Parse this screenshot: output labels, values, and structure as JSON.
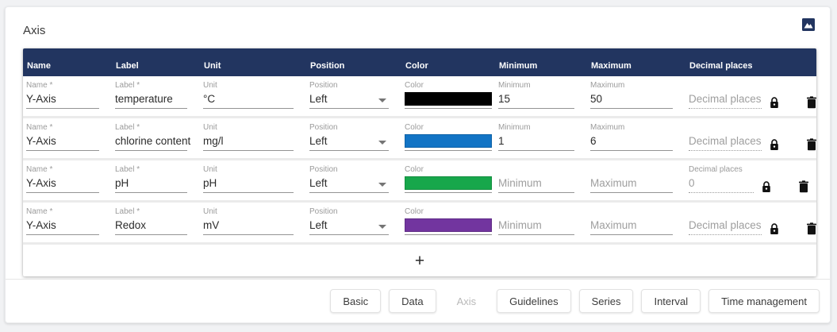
{
  "page": {
    "title": "Axis"
  },
  "theme": {
    "header_bg": "#223560",
    "divider": "#ebebeb"
  },
  "toolbar": {
    "export_image_icon": "image-icon"
  },
  "table": {
    "columns": [
      "Name",
      "Label",
      "Unit",
      "Position",
      "Color",
      "Minimum",
      "Maximum",
      "Decimal places"
    ],
    "rows": [
      {
        "fields": {
          "name": {
            "label": "Name *",
            "value": "Y-Axis",
            "state": "filled"
          },
          "label": {
            "label": "Label *",
            "value": "temperature",
            "state": "filled"
          },
          "unit": {
            "label": "Unit",
            "value": "°C",
            "state": "filled"
          },
          "position": {
            "label": "Position",
            "value": "Left",
            "state": "filled"
          },
          "color": {
            "label": "Color",
            "value": "#000000"
          },
          "minimum": {
            "label": "Minimum",
            "value": "15",
            "state": "filled"
          },
          "maximum": {
            "label": "Maximum",
            "value": "50",
            "state": "filled"
          },
          "decimal": {
            "label": "Decimal places",
            "value": "Decimal places",
            "state": "placeholder-disabled"
          }
        }
      },
      {
        "fields": {
          "name": {
            "label": "Name *",
            "value": "Y-Axis",
            "state": "filled"
          },
          "label": {
            "label": "Label *",
            "value": "chlorine content",
            "state": "filled"
          },
          "unit": {
            "label": "Unit",
            "value": "mg/l",
            "state": "filled"
          },
          "position": {
            "label": "Position",
            "value": "Left",
            "state": "filled"
          },
          "color": {
            "label": "Color",
            "value": "#1274c5"
          },
          "minimum": {
            "label": "Minimum",
            "value": "1",
            "state": "filled"
          },
          "maximum": {
            "label": "Maximum",
            "value": "6",
            "state": "filled"
          },
          "decimal": {
            "label": "Decimal places",
            "value": "Decimal places",
            "state": "placeholder-disabled"
          }
        }
      },
      {
        "fields": {
          "name": {
            "label": "Name *",
            "value": "Y-Axis",
            "state": "filled"
          },
          "label": {
            "label": "Label *",
            "value": "pH",
            "state": "filled"
          },
          "unit": {
            "label": "Unit",
            "value": "pH",
            "state": "filled"
          },
          "position": {
            "label": "Position",
            "value": "Left",
            "state": "filled"
          },
          "color": {
            "label": "Color",
            "value": "#17a74b"
          },
          "minimum": {
            "label": "Minimum",
            "value": "Minimum",
            "state": "placeholder"
          },
          "maximum": {
            "label": "Maximum",
            "value": "Maximum",
            "state": "placeholder"
          },
          "decimal": {
            "label": "Decimal places",
            "value": "0",
            "state": "filled-disabled"
          }
        }
      },
      {
        "fields": {
          "name": {
            "label": "Name *",
            "value": "Y-Axis",
            "state": "filled"
          },
          "label": {
            "label": "Label *",
            "value": "Redox",
            "state": "filled"
          },
          "unit": {
            "label": "Unit",
            "value": "mV",
            "state": "filled"
          },
          "position": {
            "label": "Position",
            "value": "Left",
            "state": "filled"
          },
          "color": {
            "label": "Color",
            "value": "#72359f"
          },
          "minimum": {
            "label": "Minimum",
            "value": "Minimum",
            "state": "placeholder"
          },
          "maximum": {
            "label": "Maximum",
            "value": "Maximum",
            "state": "placeholder"
          },
          "decimal": {
            "label": "Decimal places",
            "value": "Decimal places",
            "state": "placeholder-disabled"
          }
        }
      }
    ],
    "add_button_label": "+"
  },
  "footer": {
    "buttons": [
      {
        "label": "Basic",
        "disabled": false
      },
      {
        "label": "Data",
        "disabled": false
      },
      {
        "label": "Axis",
        "disabled": true
      },
      {
        "label": "Guidelines",
        "disabled": false
      },
      {
        "label": "Series",
        "disabled": false
      },
      {
        "label": "Interval",
        "disabled": false
      },
      {
        "label": "Time management",
        "disabled": false
      }
    ]
  }
}
